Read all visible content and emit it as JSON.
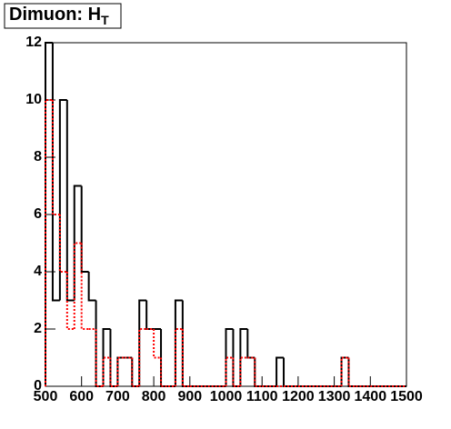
{
  "chart_data": {
    "type": "histogram",
    "title": "Dimuon: H",
    "title_subscript": "T",
    "bins": [
      500,
      520,
      540,
      560,
      580,
      600,
      620,
      640,
      660,
      680,
      700,
      720,
      740,
      760,
      780,
      800,
      820,
      840,
      860,
      880,
      900,
      920,
      940,
      960,
      980,
      1000,
      1020,
      1040,
      1060,
      1080,
      1100,
      1120,
      1140,
      1160,
      1180,
      1200,
      1220,
      1240,
      1260,
      1280,
      1300,
      1320,
      1340,
      1360,
      1380,
      1400,
      1420,
      1440,
      1460,
      1480,
      1500
    ],
    "series": [
      {
        "color": "#000000",
        "dashed": false,
        "values": [
          12,
          3,
          10,
          3,
          7,
          4,
          3,
          0,
          2,
          0,
          1,
          1,
          0,
          3,
          2,
          2,
          0,
          0,
          3,
          0,
          0,
          0,
          0,
          0,
          0,
          2,
          0,
          2,
          1,
          0,
          0,
          0,
          1,
          0,
          0,
          0,
          0,
          0,
          0,
          0,
          0,
          1,
          0,
          0,
          0,
          0,
          0,
          0,
          0,
          0
        ]
      },
      {
        "color": "#ff0000",
        "dashed": true,
        "values": [
          10,
          6,
          4,
          2,
          5,
          2,
          2,
          0,
          1,
          0,
          1,
          1,
          0,
          2,
          2,
          1,
          0,
          0,
          2,
          0,
          0,
          0,
          0,
          0,
          0,
          1,
          0,
          1,
          1,
          0,
          0,
          0,
          0,
          0,
          0,
          0,
          0,
          0,
          0,
          0,
          0,
          1,
          0,
          0,
          0,
          0,
          0,
          0,
          0,
          0
        ]
      }
    ],
    "xlim": [
      500,
      1500
    ],
    "ylim": [
      0,
      12
    ],
    "xticks": [
      500,
      600,
      700,
      800,
      900,
      1000,
      1100,
      1200,
      1300,
      1400,
      1500
    ],
    "yticks": [
      0,
      2,
      4,
      6,
      8,
      10,
      12
    ],
    "grid": false
  }
}
